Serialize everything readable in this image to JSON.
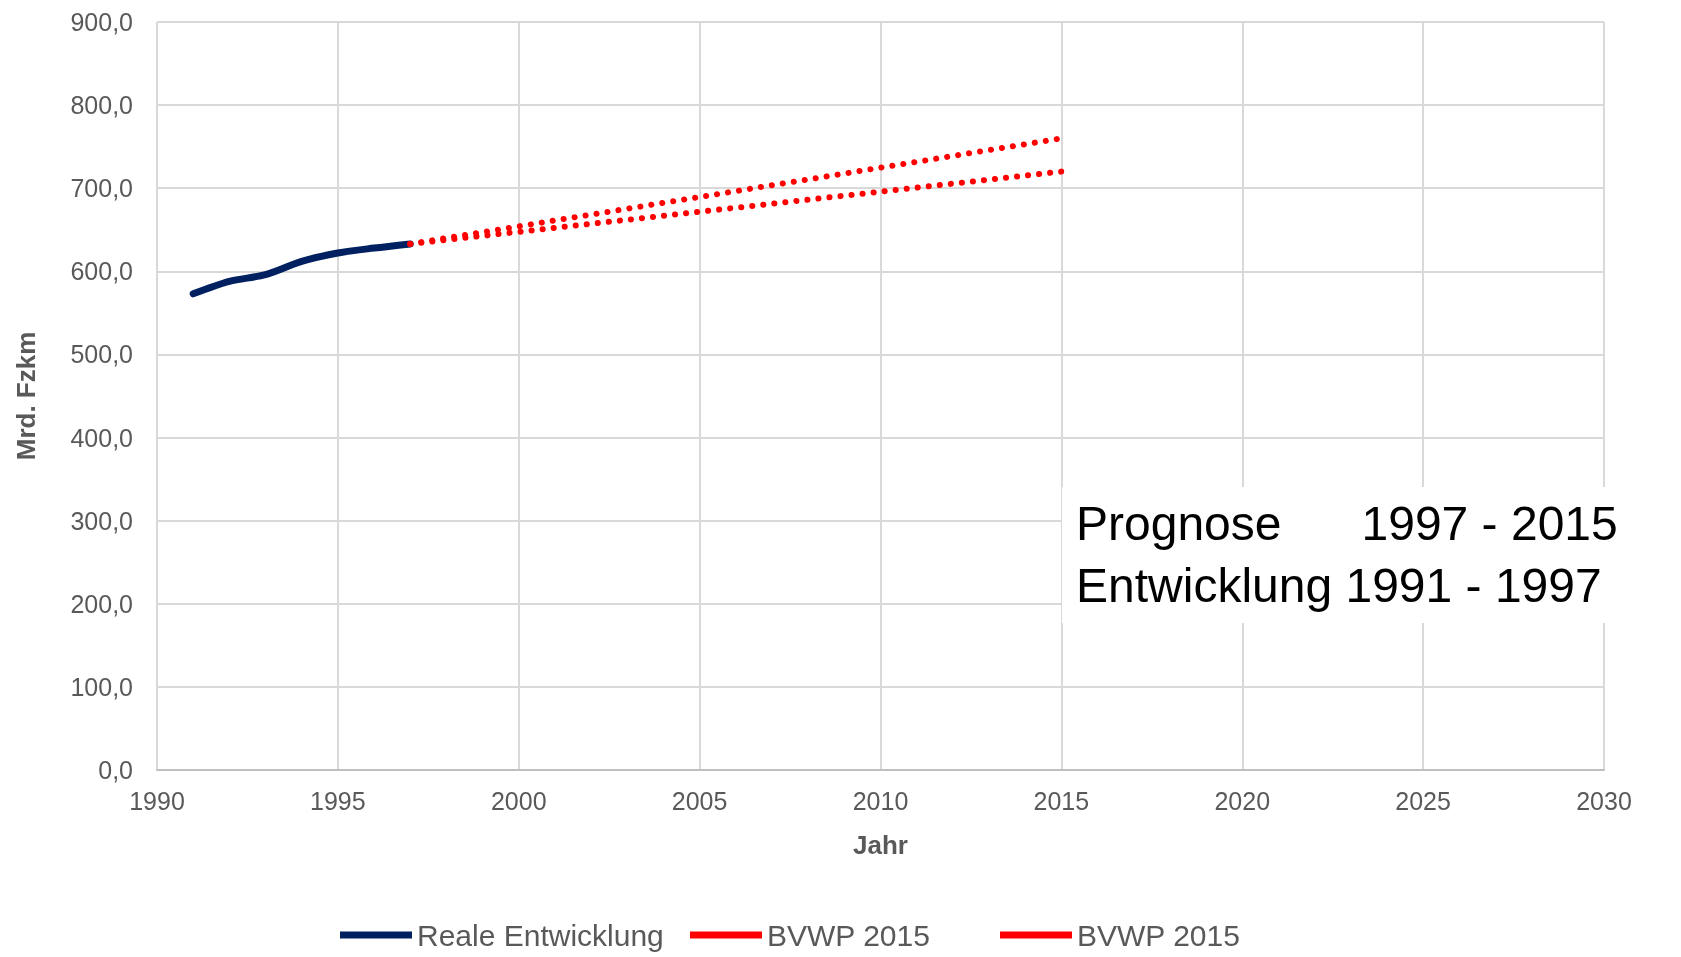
{
  "chart_data": {
    "type": "line",
    "xlabel": "Jahr",
    "ylabel": "Mrd. Fzkm",
    "series": [
      {
        "name": "Reale Entwicklung",
        "color": "#002060",
        "line_style": "solid",
        "x": [
          1991,
          1992,
          1993,
          1994,
          1995,
          1996,
          1997
        ],
        "values": [
          573,
          588,
          596,
          612,
          622,
          628,
          633
        ]
      },
      {
        "name": "BVWP 2015",
        "color": "#ff0000",
        "line_style": "dotted",
        "x": [
          1997,
          2015
        ],
        "values": [
          633,
          760
        ]
      },
      {
        "name": "BVWP 2015",
        "color": "#ff0000",
        "line_style": "dotted",
        "x": [
          1997,
          2015
        ],
        "values": [
          633,
          720
        ]
      }
    ],
    "xlim": [
      1990,
      2030
    ],
    "xticks": [
      1990,
      1995,
      2000,
      2005,
      2010,
      2015,
      2020,
      2025,
      2030
    ],
    "ylim": [
      0,
      900
    ],
    "yticks": [
      {
        "value": 0,
        "label": "0,0"
      },
      {
        "value": 100,
        "label": "100,0"
      },
      {
        "value": 200,
        "label": "200,0"
      },
      {
        "value": 300,
        "label": "300,0"
      },
      {
        "value": 400,
        "label": "400,0"
      },
      {
        "value": 500,
        "label": "500,0"
      },
      {
        "value": 600,
        "label": "600,0"
      },
      {
        "value": 700,
        "label": "700,0"
      },
      {
        "value": 800,
        "label": "800,0"
      },
      {
        "value": 900,
        "label": "900,0"
      }
    ],
    "grid": true,
    "legend": "bottom",
    "marker": "none",
    "annotations": [
      "Prognose      1997 - 2015",
      "Entwicklung 1991 - 1997"
    ]
  }
}
